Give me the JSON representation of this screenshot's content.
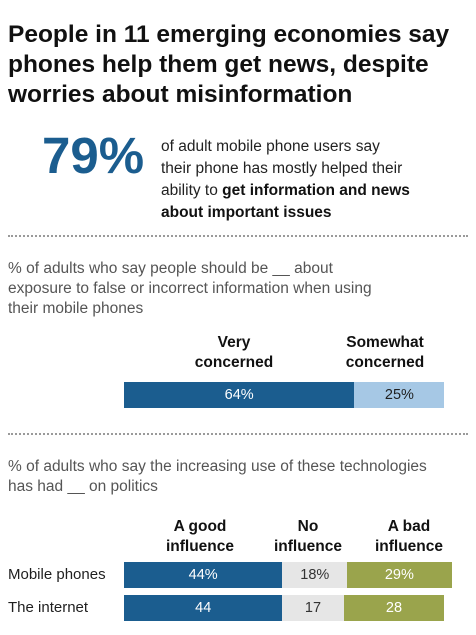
{
  "title": {
    "line1": "People in 11 emerging economies say",
    "line2": "phones help them get news, despite",
    "line3": "worries about misinformation"
  },
  "highlight": {
    "value": "79%",
    "text_line1": "of adult mobile phone users say",
    "text_line2": "their phone has mostly helped their",
    "text_line3_plain": "ability to ",
    "text_line3_bold": "get information and news",
    "text_line4_bold": "about important issues"
  },
  "colors": {
    "accent_blue": "#1b5d8f",
    "light_blue": "#a6c8e5",
    "grey": "#e6e6e6",
    "olive": "#9aa44c"
  },
  "chart_data": [
    {
      "type": "bar",
      "orientation": "horizontal-stacked",
      "title": "",
      "subtitle_line1": "% of adults who say people should be __ about",
      "subtitle_line2": "exposure to false or incorrect information when using",
      "subtitle_line3": "their mobile phones",
      "series": [
        {
          "name_line1": "Very",
          "name_line2": "concerned",
          "values": [
            64
          ],
          "labels": [
            "64%"
          ],
          "color": "#1b5d8f"
        },
        {
          "name_line1": "Somewhat",
          "name_line2": "concerned",
          "values": [
            25
          ],
          "labels": [
            "25%"
          ],
          "color": "#a6c8e5"
        }
      ]
    },
    {
      "type": "bar",
      "orientation": "horizontal-stacked",
      "title": "",
      "subtitle_line1": "% of adults who say the increasing use of these technologies",
      "subtitle_line2": "has had __ on politics",
      "categories": [
        "Mobile phones",
        "The internet"
      ],
      "series": [
        {
          "name_line1": "A good",
          "name_line2": "influence",
          "values": [
            44,
            44
          ],
          "labels": [
            "44%",
            "44"
          ],
          "color": "#1b5d8f"
        },
        {
          "name_line1": "No",
          "name_line2": "influence",
          "values": [
            18,
            17
          ],
          "labels": [
            "18%",
            "17"
          ],
          "color": "#e6e6e6"
        },
        {
          "name_line1": "A bad",
          "name_line2": "influence",
          "values": [
            29,
            28
          ],
          "labels": [
            "29%",
            "28"
          ],
          "color": "#9aa44c"
        }
      ]
    }
  ]
}
